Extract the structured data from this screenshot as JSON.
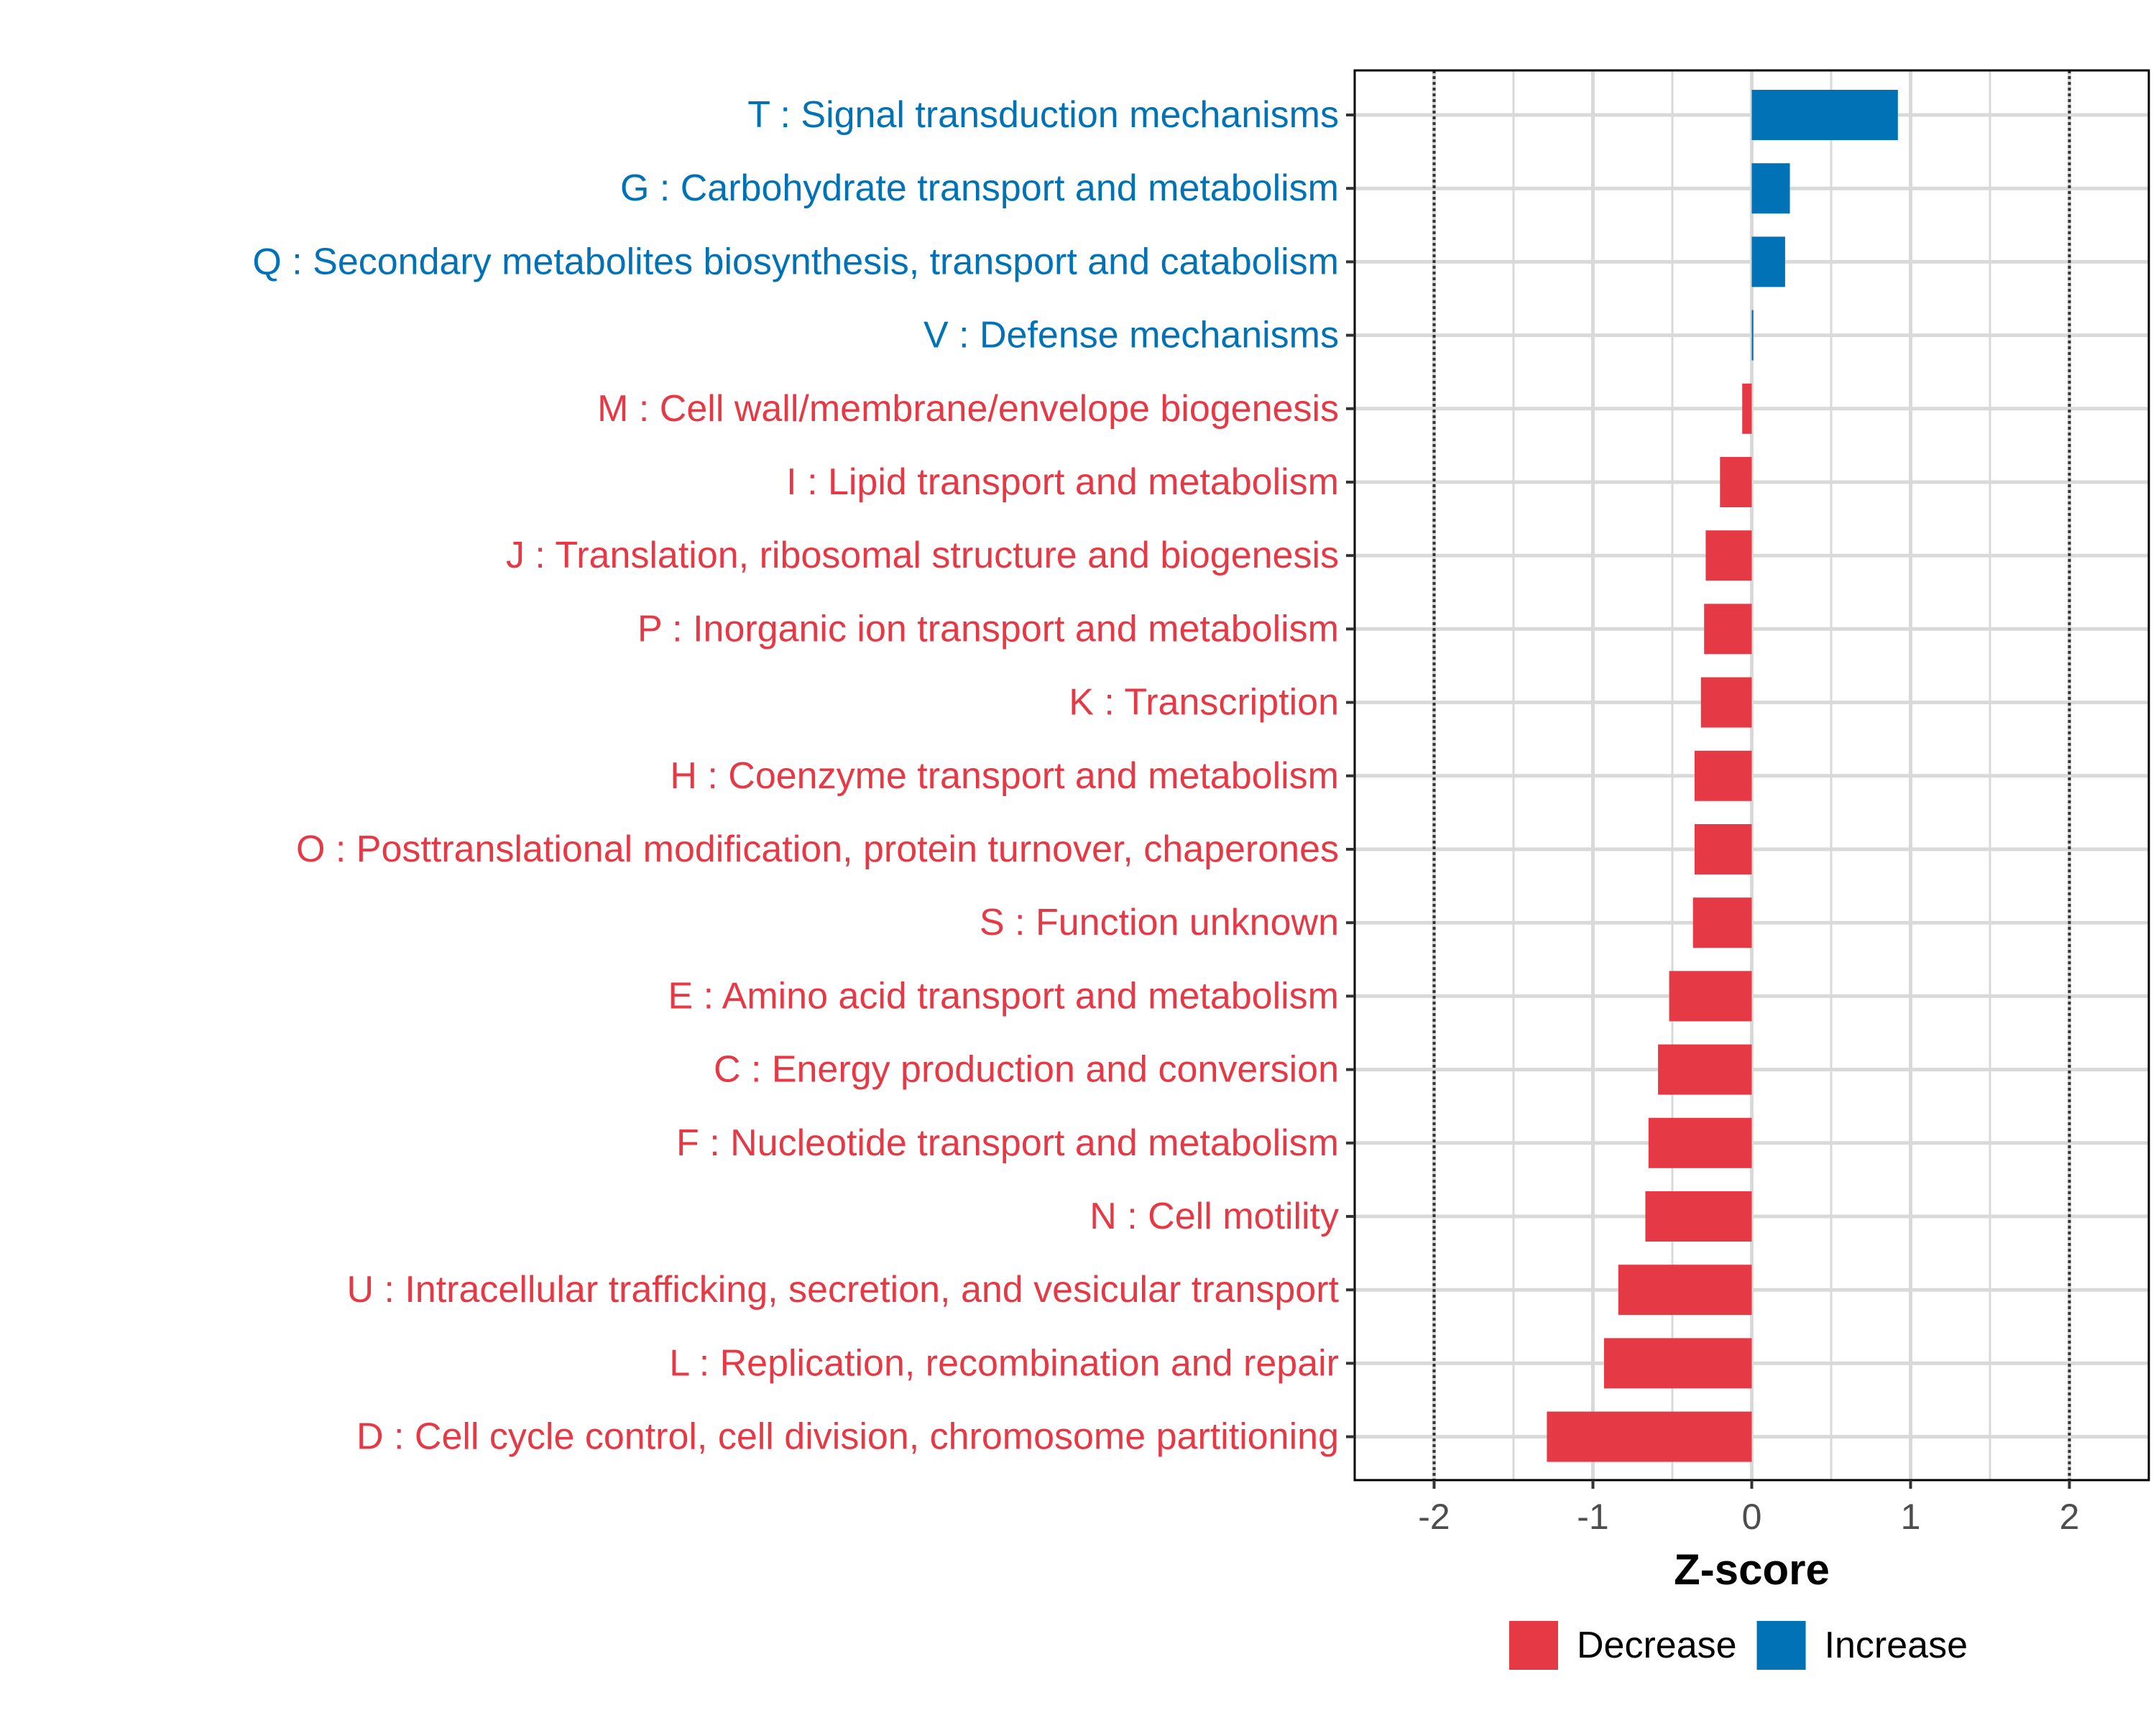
{
  "chart_data": {
    "type": "bar",
    "orientation": "horizontal",
    "title": "",
    "xlabel": "Z-score",
    "ylabel": "",
    "xlim": [
      -2.5,
      2.5
    ],
    "xticks": [
      -2,
      -1,
      0,
      1,
      2
    ],
    "xtick_labels": [
      "-2",
      "-1",
      "0",
      "1",
      "2"
    ],
    "reference_lines": [
      -2,
      2
    ],
    "grid": true,
    "legend_position": "bottom",
    "colors": {
      "Increase": "#0072B5",
      "Decrease": "#E63946"
    },
    "legend": [
      {
        "label": "Decrease",
        "color": "#E63946"
      },
      {
        "label": "Increase",
        "color": "#0072B5"
      }
    ],
    "categories": [
      {
        "label": "T : Signal transduction mechanisms",
        "value": 0.92,
        "direction": "Increase"
      },
      {
        "label": "G : Carbohydrate transport and metabolism",
        "value": 0.24,
        "direction": "Increase"
      },
      {
        "label": "Q : Secondary metabolites biosynthesis, transport and catabolism",
        "value": 0.21,
        "direction": "Increase"
      },
      {
        "label": "V : Defense mechanisms",
        "value": 0.01,
        "direction": "Increase"
      },
      {
        "label": "M : Cell wall/membrane/envelope biogenesis",
        "value": -0.06,
        "direction": "Decrease"
      },
      {
        "label": "I : Lipid transport and metabolism",
        "value": -0.2,
        "direction": "Decrease"
      },
      {
        "label": "J : Translation, ribosomal structure and biogenesis",
        "value": -0.29,
        "direction": "Decrease"
      },
      {
        "label": "P : Inorganic ion transport and metabolism",
        "value": -0.3,
        "direction": "Decrease"
      },
      {
        "label": "K : Transcription",
        "value": -0.32,
        "direction": "Decrease"
      },
      {
        "label": "H : Coenzyme transport and metabolism",
        "value": -0.36,
        "direction": "Decrease"
      },
      {
        "label": "O : Posttranslational modification, protein turnover, chaperones",
        "value": -0.36,
        "direction": "Decrease"
      },
      {
        "label": "S : Function unknown",
        "value": -0.37,
        "direction": "Decrease"
      },
      {
        "label": "E : Amino acid transport and metabolism",
        "value": -0.52,
        "direction": "Decrease"
      },
      {
        "label": "C : Energy production and conversion",
        "value": -0.59,
        "direction": "Decrease"
      },
      {
        "label": "F : Nucleotide transport and metabolism",
        "value": -0.65,
        "direction": "Decrease"
      },
      {
        "label": "N : Cell motility",
        "value": -0.67,
        "direction": "Decrease"
      },
      {
        "label": "U : Intracellular trafficking, secretion, and vesicular transport",
        "value": -0.84,
        "direction": "Decrease"
      },
      {
        "label": "L : Replication, recombination and repair",
        "value": -0.93,
        "direction": "Decrease"
      },
      {
        "label": "D : Cell cycle control, cell division, chromosome partitioning",
        "value": -1.29,
        "direction": "Decrease"
      }
    ]
  }
}
